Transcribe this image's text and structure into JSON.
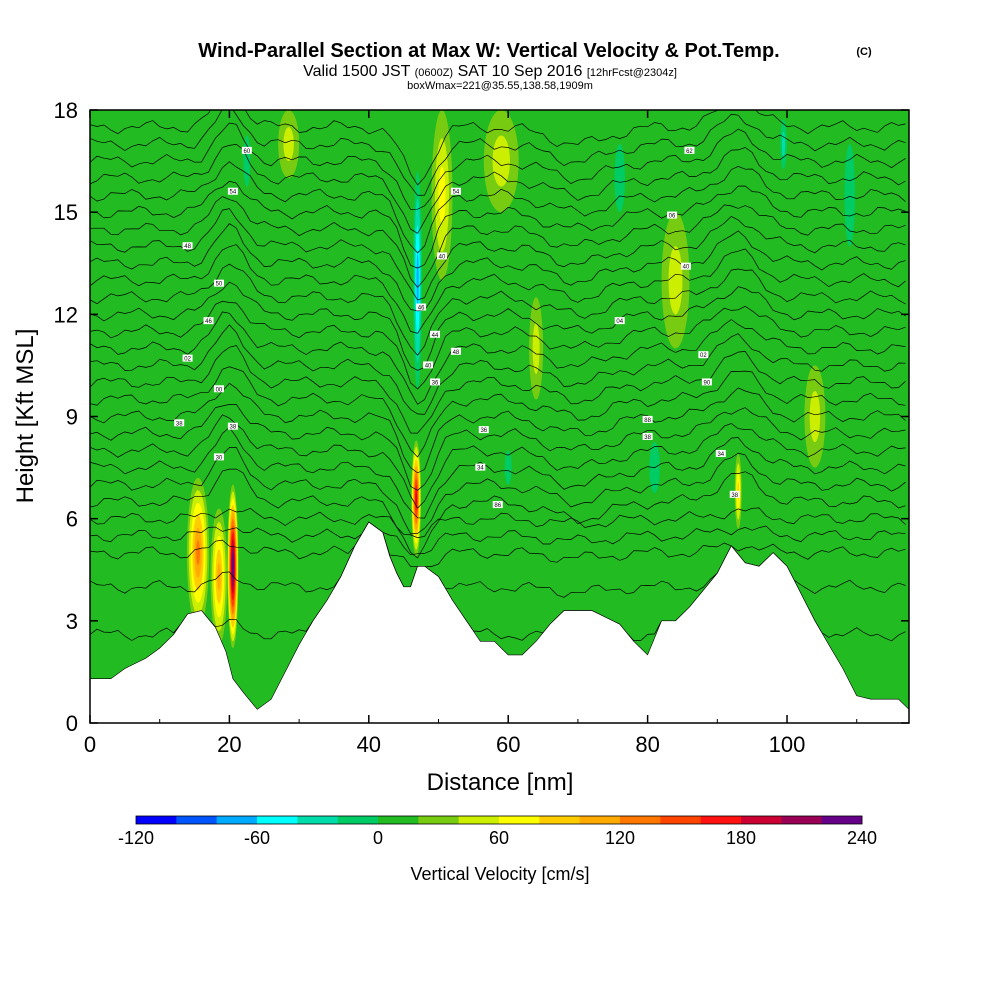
{
  "header": {
    "title": "Wind-Parallel Section at Max W: Vertical Velocity & Pot.Temp.",
    "copyright": "(C)",
    "valid_prefix": "Valid 1500 JST",
    "valid_utc": "(0600Z)",
    "valid_date": "SAT 10 Sep 2016",
    "forecast": "[12hrFcst@2304z]",
    "boxinfo": "boxWmax=221@35.55,138.58,1909m"
  },
  "chart_data": {
    "type": "heatmap",
    "xlabel": "Distance [nm]",
    "ylabel": "Height [Kft MSL]",
    "xlim": [
      0,
      117.5
    ],
    "ylim": [
      0,
      18
    ],
    "x_ticks": [
      "0",
      "20",
      "40",
      "60",
      "80",
      "100"
    ],
    "y_ticks": [
      "0",
      "3",
      "6",
      "9",
      "12",
      "15",
      "18"
    ],
    "background_velocity_cm_s": 10,
    "terrain": {
      "x": [
        0,
        3,
        5,
        8,
        10,
        12,
        14,
        16,
        18,
        19.5,
        20.5,
        22,
        24,
        26,
        28,
        30,
        32,
        34,
        36,
        38,
        40,
        42,
        43,
        44,
        45,
        46,
        47,
        48,
        50,
        52,
        54,
        56,
        58,
        60,
        62,
        64,
        66,
        68,
        70,
        72,
        74,
        76,
        78,
        80,
        82,
        84,
        86,
        88,
        90,
        92,
        94,
        96,
        98,
        100,
        102,
        104,
        106,
        108,
        110,
        112,
        114,
        116,
        117.5
      ],
      "y": [
        1.3,
        1.3,
        1.6,
        1.9,
        2.2,
        2.6,
        3.2,
        3.3,
        2.8,
        2.1,
        1.3,
        0.9,
        0.4,
        0.7,
        1.5,
        2.3,
        3.0,
        3.6,
        4.3,
        5.2,
        5.9,
        5.6,
        4.9,
        4.4,
        4.0,
        4.0,
        4.6,
        4.6,
        4.3,
        3.6,
        3.0,
        2.4,
        2.4,
        2.0,
        2.0,
        2.4,
        2.9,
        3.3,
        3.3,
        3.3,
        3.1,
        2.9,
        2.4,
        2.0,
        3.0,
        3.0,
        3.4,
        3.9,
        4.4,
        5.2,
        4.7,
        4.6,
        5.0,
        4.6,
        3.8,
        3.0,
        2.3,
        1.6,
        0.8,
        0.7,
        0.7,
        0.7,
        0.4
      ]
    },
    "vertical_velocity_features": [
      {
        "x": 15.5,
        "z": 5.0,
        "width_nm": 1.6,
        "height_kft": 2.2,
        "w": 120
      },
      {
        "x": 20.5,
        "z": 4.6,
        "width_nm": 0.8,
        "height_kft": 2.4,
        "w": 221
      },
      {
        "x": 18.5,
        "z": 4.3,
        "width_nm": 1.2,
        "height_kft": 2.0,
        "w": 90
      },
      {
        "x": 46.8,
        "z": 6.6,
        "width_nm": 0.7,
        "height_kft": 1.7,
        "w": 170
      },
      {
        "x": 93.0,
        "z": 6.8,
        "width_nm": 0.5,
        "height_kft": 1.1,
        "w": 75
      },
      {
        "x": 47.0,
        "z": 13.0,
        "width_nm": 0.8,
        "height_kft": 4.0,
        "w": -90
      },
      {
        "x": 50.5,
        "z": 15.5,
        "width_nm": 1.5,
        "height_kft": 2.5,
        "w": 60
      },
      {
        "x": 59.0,
        "z": 16.5,
        "width_nm": 2.5,
        "height_kft": 1.5,
        "w": 40
      },
      {
        "x": 60.0,
        "z": 7.5,
        "width_nm": 1.0,
        "height_kft": 1.0,
        "w": -30
      },
      {
        "x": 64.0,
        "z": 11.0,
        "width_nm": 1.0,
        "height_kft": 1.5,
        "w": 40
      },
      {
        "x": 99.5,
        "z": 17.0,
        "width_nm": 0.7,
        "height_kft": 1.1,
        "w": -60
      },
      {
        "x": 84.0,
        "z": 13.0,
        "width_nm": 2.0,
        "height_kft": 2.0,
        "w": 35
      },
      {
        "x": 28.5,
        "z": 17.0,
        "width_nm": 1.5,
        "height_kft": 1.0,
        "w": 40
      },
      {
        "x": 22.5,
        "z": 16.5,
        "width_nm": 1.0,
        "height_kft": 1.5,
        "w": -25
      },
      {
        "x": 109.0,
        "z": 15.5,
        "width_nm": 1.5,
        "height_kft": 3.0,
        "w": -25
      },
      {
        "x": 76.0,
        "z": 16.0,
        "width_nm": 1.5,
        "height_kft": 2.0,
        "w": -25
      },
      {
        "x": 104.0,
        "z": 9.0,
        "width_nm": 1.5,
        "height_kft": 1.5,
        "w": 40
      },
      {
        "x": 81.0,
        "z": 7.5,
        "width_nm": 1.5,
        "height_kft": 1.5,
        "w": -25
      }
    ],
    "theta_contours": {
      "base_heights_kft": [
        2.6,
        4.0,
        5.0,
        5.5,
        6.0,
        6.5,
        7.0,
        7.5,
        8.0,
        8.5,
        9.0,
        9.5,
        10.0,
        10.5,
        11.0,
        11.5,
        12.0,
        12.5,
        13.0,
        13.5,
        14.0,
        14.5,
        15.0,
        15.5,
        16.0,
        16.5,
        17.0,
        17.5
      ],
      "perturbations": [
        {
          "x": 20,
          "width_nm": 3,
          "dz": 1.0
        },
        {
          "x": 47,
          "width_nm": 3,
          "dz": -1.6
        },
        {
          "x": 93,
          "width_nm": 4,
          "dz": 0.8
        },
        {
          "x": 70,
          "width_nm": 6,
          "dz": -0.5
        }
      ]
    },
    "contour_labels": [
      {
        "x": 22.5,
        "z": 16.8,
        "text": "60"
      },
      {
        "x": 20.5,
        "z": 15.6,
        "text": "54"
      },
      {
        "x": 14,
        "z": 14.0,
        "text": "48"
      },
      {
        "x": 18.5,
        "z": 12.9,
        "text": "50"
      },
      {
        "x": 17,
        "z": 11.8,
        "text": "46"
      },
      {
        "x": 14,
        "z": 10.7,
        "text": "02"
      },
      {
        "x": 18.5,
        "z": 9.8,
        "text": "00"
      },
      {
        "x": 12.8,
        "z": 8.8,
        "text": "38"
      },
      {
        "x": 20.5,
        "z": 8.7,
        "text": "38"
      },
      {
        "x": 18.5,
        "z": 7.8,
        "text": "30"
      },
      {
        "x": 52.5,
        "z": 15.6,
        "text": "54"
      },
      {
        "x": 50.5,
        "z": 13.7,
        "text": "40"
      },
      {
        "x": 47.5,
        "z": 12.2,
        "text": "46"
      },
      {
        "x": 49.5,
        "z": 11.4,
        "text": "44"
      },
      {
        "x": 52.5,
        "z": 10.9,
        "text": "48"
      },
      {
        "x": 48.5,
        "z": 10.5,
        "text": "40"
      },
      {
        "x": 49.5,
        "z": 10.0,
        "text": "36"
      },
      {
        "x": 56.5,
        "z": 8.6,
        "text": "36"
      },
      {
        "x": 56,
        "z": 7.5,
        "text": "34"
      },
      {
        "x": 58.5,
        "z": 6.4,
        "text": "86"
      },
      {
        "x": 86,
        "z": 16.8,
        "text": "62"
      },
      {
        "x": 83.5,
        "z": 14.9,
        "text": "06"
      },
      {
        "x": 85.5,
        "z": 13.4,
        "text": "40"
      },
      {
        "x": 76,
        "z": 11.8,
        "text": "04"
      },
      {
        "x": 88,
        "z": 10.8,
        "text": "02"
      },
      {
        "x": 88.5,
        "z": 10.0,
        "text": "90"
      },
      {
        "x": 80,
        "z": 8.9,
        "text": "88"
      },
      {
        "x": 80,
        "z": 8.4,
        "text": "38"
      },
      {
        "x": 90.5,
        "z": 7.9,
        "text": "34"
      },
      {
        "x": 92.5,
        "z": 6.7,
        "text": "38"
      }
    ]
  },
  "colorbar": {
    "label": "Vertical Velocity [cm/s]",
    "ticks": [
      "-120",
      "-60",
      "0",
      "60",
      "120",
      "180",
      "240"
    ],
    "colors": [
      "#0000ff",
      "#0055ff",
      "#00aaff",
      "#00ffff",
      "#00ddaa",
      "#00cc66",
      "#22bb22",
      "#77cc11",
      "#ccee00",
      "#ffff00",
      "#ffcc00",
      "#ffaa00",
      "#ff7700",
      "#ff4400",
      "#ff1111",
      "#cc0033",
      "#990055",
      "#660088"
    ]
  }
}
